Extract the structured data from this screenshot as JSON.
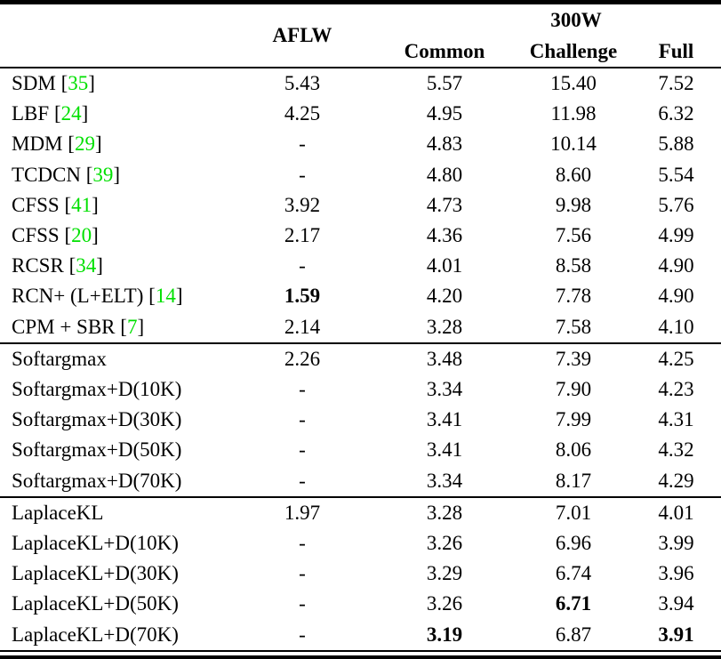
{
  "table": {
    "header": {
      "method_column": "",
      "aflw": "AFLW",
      "group_300w": "300W",
      "common": "Common",
      "challenge": "Challenge",
      "full": "Full"
    },
    "cite_format": {
      "prefix": " [",
      "suffix": "]"
    },
    "citation_color": "#00E000",
    "sections": [
      {
        "rows": [
          {
            "label": "SDM",
            "cite": "35",
            "values": [
              "5.43",
              "5.57",
              "15.40",
              "7.52"
            ],
            "bold": []
          },
          {
            "label": "LBF",
            "cite": "24",
            "values": [
              "4.25",
              "4.95",
              "11.98",
              "6.32"
            ],
            "bold": []
          },
          {
            "label": "MDM",
            "cite": "29",
            "values": [
              "-",
              "4.83",
              "10.14",
              "5.88"
            ],
            "bold": []
          },
          {
            "label": "TCDCN",
            "cite": "39",
            "values": [
              "-",
              "4.80",
              "8.60",
              "5.54"
            ],
            "bold": []
          },
          {
            "label": "CFSS",
            "cite": "41",
            "values": [
              "3.92",
              "4.73",
              "9.98",
              "5.76"
            ],
            "bold": []
          },
          {
            "label": "CFSS",
            "cite": "20",
            "values": [
              "2.17",
              "4.36",
              "7.56",
              "4.99"
            ],
            "bold": []
          },
          {
            "label": "RCSR",
            "cite": "34",
            "values": [
              "-",
              "4.01",
              "8.58",
              "4.90"
            ],
            "bold": []
          },
          {
            "label": "RCN+ (L+ELT)",
            "cite": "14",
            "values": [
              "1.59",
              "4.20",
              "7.78",
              "4.90"
            ],
            "bold": [
              0
            ]
          },
          {
            "label": "CPM + SBR",
            "cite": "7",
            "values": [
              "2.14",
              "3.28",
              "7.58",
              "4.10"
            ],
            "bold": []
          }
        ]
      },
      {
        "rows": [
          {
            "label": "Softargmax",
            "cite": null,
            "values": [
              "2.26",
              "3.48",
              "7.39",
              "4.25"
            ],
            "bold": []
          },
          {
            "label": "Softargmax+D(10K)",
            "cite": null,
            "values": [
              "-",
              "3.34",
              "7.90",
              "4.23"
            ],
            "bold": []
          },
          {
            "label": "Softargmax+D(30K)",
            "cite": null,
            "values": [
              "-",
              "3.41",
              "7.99",
              "4.31"
            ],
            "bold": []
          },
          {
            "label": "Softargmax+D(50K)",
            "cite": null,
            "values": [
              "-",
              "3.41",
              "8.06",
              "4.32"
            ],
            "bold": []
          },
          {
            "label": "Softargmax+D(70K)",
            "cite": null,
            "values": [
              "-",
              "3.34",
              "8.17",
              "4.29"
            ],
            "bold": []
          }
        ]
      },
      {
        "rows": [
          {
            "label": "LaplaceKL",
            "cite": null,
            "values": [
              "1.97",
              "3.28",
              "7.01",
              "4.01"
            ],
            "bold": []
          },
          {
            "label": "LaplaceKL+D(10K)",
            "cite": null,
            "values": [
              "-",
              "3.26",
              "6.96",
              "3.99"
            ],
            "bold": []
          },
          {
            "label": "LaplaceKL+D(30K)",
            "cite": null,
            "values": [
              "-",
              "3.29",
              "6.74",
              "3.96"
            ],
            "bold": []
          },
          {
            "label": "LaplaceKL+D(50K)",
            "cite": null,
            "values": [
              "-",
              "3.26",
              "6.71",
              "3.94"
            ],
            "bold": [
              2
            ]
          },
          {
            "label": "LaplaceKL+D(70K)",
            "cite": null,
            "values": [
              "-",
              "3.19",
              "6.87",
              "3.91"
            ],
            "bold": [
              1,
              3
            ]
          }
        ]
      }
    ]
  }
}
